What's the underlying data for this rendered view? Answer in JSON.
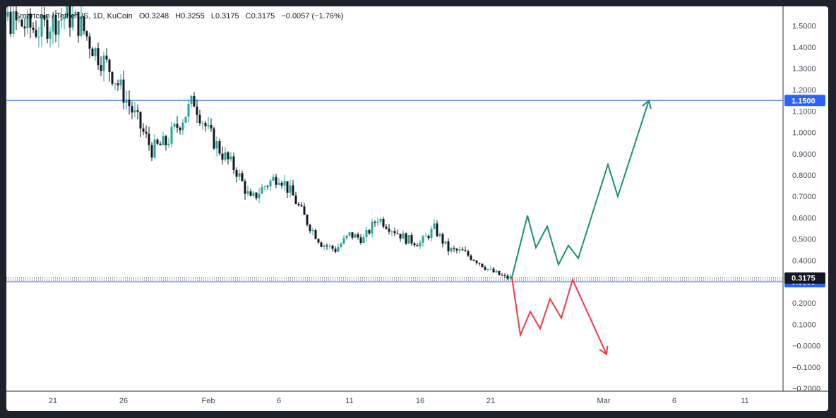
{
  "legend": {
    "symbol": "Smartcoin / TetherUS, 1D, KuCoin",
    "open_label": "O",
    "open": "0.3248",
    "high_label": "H",
    "high": "0.3255",
    "low_label": "L",
    "low": "0.3175",
    "close_label": "C",
    "close": "0.3175",
    "change": "−0.0057 (−1.76%)"
  },
  "colors": {
    "up": "#26a69a",
    "down": "#131722",
    "bull_path": "#1a8f78",
    "bear_path": "#f23645",
    "level_line": "#2962ff",
    "level_tag": "#2962ff",
    "price_tag": "#131722"
  },
  "chart_data": {
    "type": "candlestick",
    "ylim": [
      -0.2,
      1.55
    ],
    "y_ticks": [
      "1.5000",
      "1.4000",
      "1.3000",
      "1.2000",
      "1.1000",
      "1.0000",
      "0.9000",
      "0.8000",
      "0.7000",
      "0.6000",
      "0.5000",
      "0.4000",
      "0.3000",
      "0.2000",
      "0.1000",
      "−0.0000",
      "−0.1000",
      "−0.2000"
    ],
    "y_tick_values": [
      1.5,
      1.4,
      1.3,
      1.2,
      1.1,
      1.0,
      0.9,
      0.8,
      0.7,
      0.6,
      0.5,
      0.4,
      0.3,
      0.2,
      0.1,
      0.0,
      -0.1,
      -0.2
    ],
    "x_ticks": [
      "21",
      "26",
      "Feb",
      "6",
      "11",
      "16",
      "21",
      "Mar",
      "6",
      "11"
    ],
    "x_tick_days": [
      21,
      26,
      32,
      37,
      42,
      47,
      52,
      60,
      65,
      70
    ],
    "horizontal_levels": [
      {
        "value": 1.15,
        "label": "1.1500"
      },
      {
        "value": 0.3,
        "label": "0.3000"
      }
    ],
    "last_price": {
      "value": 0.3175,
      "label": "0.3175"
    },
    "candles_close_path": [
      [
        15.2,
        1.3
      ],
      [
        16,
        1.48
      ],
      [
        17,
        1.56
      ],
      [
        18,
        1.52
      ],
      [
        19,
        1.5
      ],
      [
        20,
        1.48
      ],
      [
        21,
        1.52
      ],
      [
        22,
        1.55
      ],
      [
        23,
        1.5
      ],
      [
        24,
        1.38
      ],
      [
        25,
        1.3
      ],
      [
        26,
        1.18
      ],
      [
        27,
        1.05
      ],
      [
        28,
        0.92
      ],
      [
        29,
        0.95
      ],
      [
        30,
        1.05
      ],
      [
        31,
        1.15
      ],
      [
        32,
        1.0
      ],
      [
        33,
        0.9
      ],
      [
        34,
        0.82
      ],
      [
        35,
        0.68
      ],
      [
        36,
        0.75
      ],
      [
        37,
        0.8
      ],
      [
        38,
        0.7
      ],
      [
        39,
        0.58
      ],
      [
        40,
        0.48
      ],
      [
        41,
        0.45
      ],
      [
        42,
        0.52
      ],
      [
        43,
        0.5
      ],
      [
        44,
        0.6
      ],
      [
        45,
        0.55
      ],
      [
        46,
        0.5
      ],
      [
        47,
        0.48
      ],
      [
        48,
        0.55
      ],
      [
        49,
        0.45
      ],
      [
        50,
        0.44
      ],
      [
        51,
        0.4
      ],
      [
        52,
        0.35
      ],
      [
        53,
        0.32
      ],
      [
        53.5,
        0.3175
      ]
    ],
    "projections": [
      {
        "name": "",
        "direction": "up",
        "points": [
          [
            53.5,
            0.32
          ],
          [
            54.6,
            0.61
          ],
          [
            55.2,
            0.46
          ],
          [
            56.0,
            0.56
          ],
          [
            56.8,
            0.38
          ],
          [
            57.5,
            0.47
          ],
          [
            58.2,
            0.41
          ],
          [
            60.3,
            0.85
          ],
          [
            61.0,
            0.7
          ],
          [
            63.2,
            1.15
          ]
        ]
      },
      {
        "name": "",
        "direction": "down",
        "points": [
          [
            53.5,
            0.32
          ],
          [
            54.1,
            0.05
          ],
          [
            54.8,
            0.16
          ],
          [
            55.5,
            0.08
          ],
          [
            56.2,
            0.22
          ],
          [
            57.0,
            0.13
          ],
          [
            57.8,
            0.31
          ],
          [
            60.2,
            -0.04
          ]
        ]
      }
    ]
  }
}
